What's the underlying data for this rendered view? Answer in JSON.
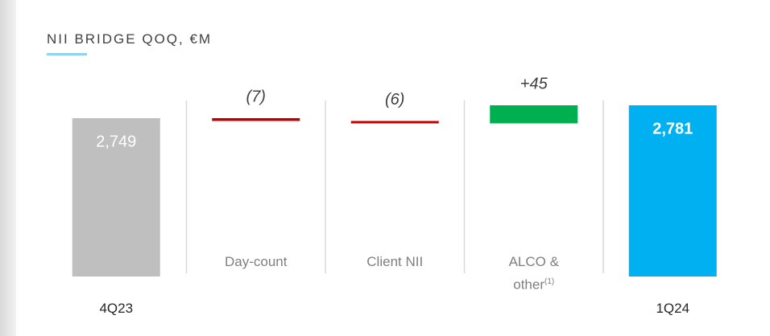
{
  "chart_data": {
    "type": "waterfall",
    "title": "NII BRIDGE QOQ, €M",
    "categories": [
      "4Q23",
      "Day-count",
      "Client NII",
      "ALCO & other",
      "1Q24"
    ],
    "category_footnotes": [
      null,
      null,
      null,
      "(1)",
      null
    ],
    "measures": [
      "absolute",
      "relative",
      "relative",
      "relative",
      "absolute"
    ],
    "values": [
      2749,
      -7,
      -6,
      45,
      2781
    ],
    "value_labels": [
      "2,749",
      "(7)",
      "(6)",
      "+45",
      "2,781"
    ],
    "colors": [
      "#bfbfbf",
      "#c00000",
      "#c00000",
      "#00b050",
      "#00b0f0"
    ],
    "ylim": [
      2355,
      2845
    ]
  }
}
